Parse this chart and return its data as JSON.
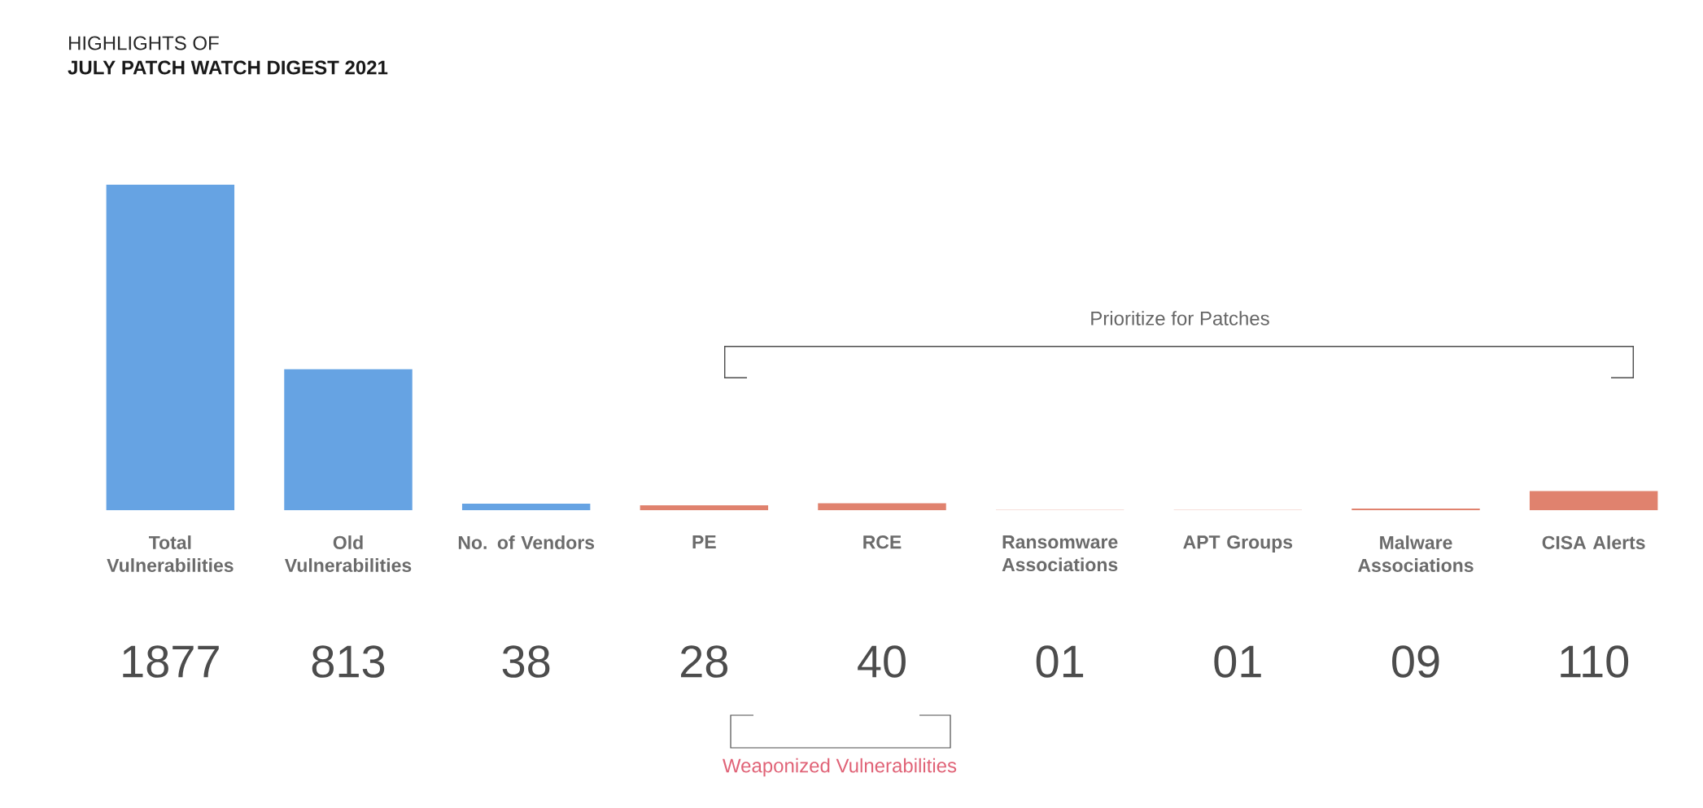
{
  "chart_data": {
    "type": "bar",
    "title": "HIGHLIGHTS OF",
    "subtitle": "JULY PATCH WATCH DIGEST 2021",
    "categories": [
      "Total Vulnerabilities",
      "Old Vulnerabilities",
      "No. of Vendors",
      "PE",
      "RCE",
      "Ransomware Associations",
      "APT Groups",
      "Malware Associations",
      "CISA Alerts"
    ],
    "values": [
      1877,
      813,
      38,
      28,
      40,
      1,
      1,
      9,
      110
    ],
    "value_labels": [
      "1877",
      "813",
      "38",
      "28",
      "40",
      "01",
      "01",
      "09",
      "110"
    ],
    "colors": [
      "#66a3e3",
      "#66a3e3",
      "#66a3e3",
      "#e0826e",
      "#e0826e",
      "#e0826e",
      "#e0826e",
      "#e0826e",
      "#e0826e"
    ],
    "annotations": [
      "Prioritize for Patches",
      "Weaponized Vulnerabilities"
    ]
  }
}
